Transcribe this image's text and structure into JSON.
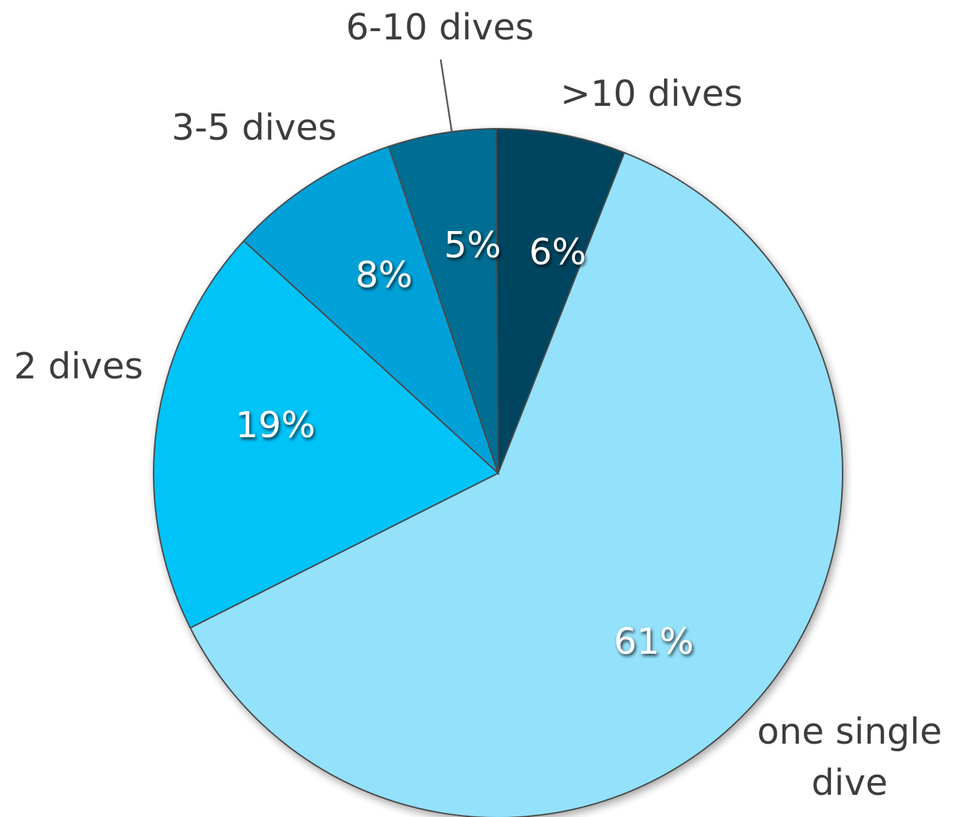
{
  "chart_data": {
    "type": "pie",
    "categories": [
      "one single dive",
      "2 dives",
      "3-5 dives",
      "6-10 dives",
      ">10 dives"
    ],
    "values": [
      61,
      19,
      8,
      5,
      6
    ],
    "value_labels": [
      "61%",
      "19%",
      "8%",
      "5%",
      "6%"
    ],
    "label_lines": [
      [
        "one single",
        "dive"
      ],
      [
        "2 dives"
      ],
      [
        "3-5 dives"
      ],
      [
        "6-10 dives"
      ],
      [
        ">10 dives"
      ]
    ],
    "colors": [
      "#93e1fb",
      "#00c3f8",
      "#00a1d8",
      "#006d92",
      "#00455f"
    ],
    "legend": "none",
    "title": ""
  }
}
